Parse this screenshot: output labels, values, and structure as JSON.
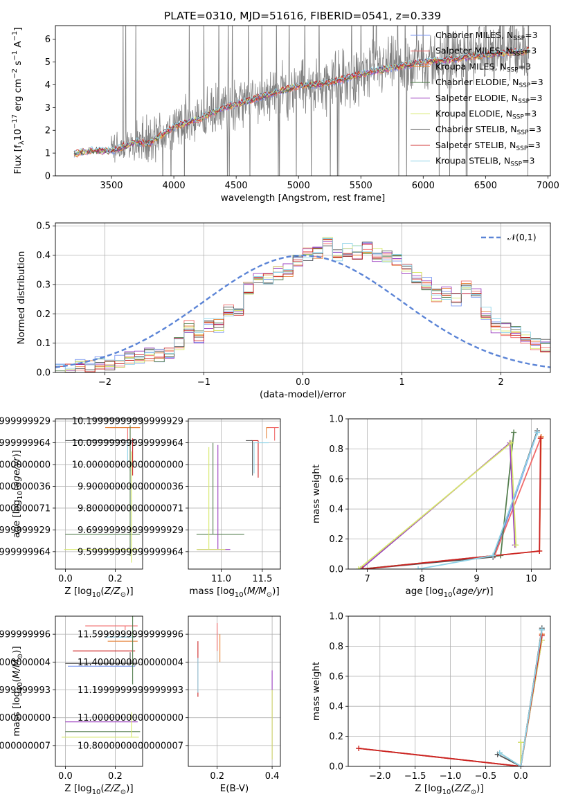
{
  "title": "PLATE=0310, MJD=51616, FIBERID=0541, z=0.339",
  "colors": [
    "#7895f0",
    "#f06a6a",
    "#e6843a",
    "#557f4f",
    "#9b3fbf",
    "#d6e86a",
    "#555555",
    "#cc2424",
    "#8fd3e8"
  ],
  "chart_data": [
    {
      "id": "spectrum",
      "type": "line",
      "title": "PLATE=0310, MJD=51616, FIBERID=0541, z=0.339",
      "xlabel": "wavelength [Angstrom, rest frame]",
      "ylabel": "Flux [f_λ 10^-17 erg cm^-2 s^-1 A^-1]",
      "xlim": [
        3050,
        7020
      ],
      "ylim": [
        0,
        6.6
      ],
      "xticks": [
        3500,
        4000,
        4500,
        5000,
        5500,
        6000,
        6500,
        7000
      ],
      "yticks": [
        0,
        1,
        2,
        3,
        4,
        5,
        6
      ],
      "data_color": "#808080",
      "legend_position": "top-right",
      "legend": [
        "Chabrier MILES, N_SSP=3",
        "Salpeter MILES, N_SSP=3",
        "Kroupa MILES, N_SSP=3",
        "Chabrier ELODIE, N_SSP=3",
        "Salpeter ELODIE, N_SSP=3",
        "Kroupa ELODIE, N_SSP=3",
        "Chabrier STELIB, N_SSP=3",
        "Salpeter STELIB, N_SSP=3",
        "Kroupa STELIB, N_SSP=3"
      ],
      "model_continuum": {
        "x": [
          3200,
          3300,
          3500,
          3700,
          3800,
          3900,
          4000,
          4200,
          4400,
          4600,
          4800,
          5000,
          5200,
          5400,
          5600,
          5800,
          6000,
          6200,
          6400,
          6600,
          6850
        ],
        "y": [
          0.95,
          1.1,
          1.1,
          1.5,
          1.4,
          1.8,
          2.15,
          2.5,
          3.0,
          3.3,
          3.65,
          3.95,
          4.05,
          4.3,
          4.6,
          4.8,
          5.0,
          5.1,
          5.25,
          5.35,
          5.5
        ]
      }
    },
    {
      "id": "residuals",
      "type": "line",
      "xlabel": "(data-model)/error",
      "ylabel": "Normed distribution",
      "xlim": [
        -2.5,
        2.5
      ],
      "ylim": [
        0,
        0.51
      ],
      "xticks": [
        -2,
        -1,
        0,
        1,
        2
      ],
      "yticks": [
        0.0,
        0.1,
        0.2,
        0.3,
        0.4,
        0.5
      ],
      "grid": true,
      "legend_position": "top-right",
      "normal_label": "𝒩(0,1)",
      "normal_color": "#5b84d6",
      "bin_width": 0.1,
      "bin_start": -2.5,
      "hist_reference": [
        0.01,
        0.01,
        0.02,
        0.02,
        0.03,
        0.03,
        0.04,
        0.05,
        0.05,
        0.06,
        0.06,
        0.07,
        0.1,
        0.16,
        0.12,
        0.16,
        0.16,
        0.21,
        0.21,
        0.29,
        0.33,
        0.32,
        0.34,
        0.35,
        0.38,
        0.4,
        0.41,
        0.44,
        0.4,
        0.42,
        0.41,
        0.43,
        0.4,
        0.4,
        0.38,
        0.36,
        0.33,
        0.3,
        0.26,
        0.27,
        0.25,
        0.29,
        0.28,
        0.2,
        0.16,
        0.15,
        0.14,
        0.12,
        0.1,
        0.09,
        0.08,
        0.07,
        0.06,
        0.07,
        0.06,
        0.05,
        0.04,
        0.04,
        0.03,
        0.03
      ]
    },
    {
      "id": "age-vs-Z",
      "type": "scatter",
      "xlabel": "Z [log10(Z/Z⊙)]",
      "ylabel": "age  [log10(age/yr)]",
      "xlim": [
        -0.04,
        0.31
      ],
      "ylim": [
        9.52,
        10.21
      ],
      "xticks": [
        0.0,
        0.2
      ],
      "yticks": [
        9.6,
        9.7,
        9.8,
        9.9,
        10.0,
        10.1,
        10.2
      ],
      "points": [
        {
          "x": 0.25,
          "y": 10.17,
          "xerr": [
            0.08,
            0.05
          ],
          "yerr": [
            0.06,
            0.0
          ],
          "series": 1
        },
        {
          "x": 0.26,
          "y": 10.17,
          "xerr": [
            0.1,
            0.04
          ],
          "yerr": [
            0.08,
            0.0
          ],
          "series": 2
        },
        {
          "x": 0.25,
          "y": 10.11,
          "xerr": [
            0.25,
            0.02
          ],
          "yerr": [
            0.1,
            0.0
          ],
          "series": 8
        },
        {
          "x": 0.26,
          "y": 10.11,
          "xerr": [
            0.26,
            0.02
          ],
          "yerr": [
            0.14,
            0.0
          ],
          "series": 6
        },
        {
          "x": 0.26,
          "y": 9.68,
          "xerr": [
            0.26,
            0.04
          ],
          "yerr": [
            0.1,
            0.5
          ],
          "series": 3
        },
        {
          "x": 0.265,
          "y": 9.61,
          "xerr": [
            0.27,
            0.03
          ],
          "yerr": [
            0.06,
            0.45
          ],
          "series": 5
        },
        {
          "x": 0.27,
          "y": 10.12,
          "xerr": [
            0.0,
            0.0
          ],
          "yerr": [
            0.17,
            0.0
          ],
          "series": 7
        }
      ]
    },
    {
      "id": "age-vs-mass",
      "type": "scatter",
      "xlabel": "mass [log10(M/M⊙)]",
      "ylabel": "",
      "xlim": [
        10.6,
        11.72
      ],
      "ylim": [
        9.52,
        10.21
      ],
      "xticks": [
        11.0,
        11.5
      ],
      "yticks": [
        9.6,
        9.7,
        9.8,
        9.9,
        10.0,
        10.1,
        10.2
      ],
      "points": [
        {
          "x": 11.65,
          "y": 10.17,
          "xerr": [
            0.1,
            0.05
          ],
          "yerr": [
            0.06,
            0.0
          ],
          "series": 1
        },
        {
          "x": 11.55,
          "y": 10.17,
          "xerr": [
            0.0,
            0.03
          ],
          "yerr": [
            0.05,
            0.0
          ],
          "series": 2
        },
        {
          "x": 11.45,
          "y": 10.11,
          "xerr": [
            0.09,
            0.0
          ],
          "yerr": [
            0.17,
            0.0
          ],
          "series": 7
        },
        {
          "x": 11.38,
          "y": 10.11,
          "xerr": [
            0.08,
            0.0
          ],
          "yerr": [
            0.16,
            0.0
          ],
          "series": 6
        },
        {
          "x": 11.4,
          "y": 10.1,
          "xerr": [
            0.0,
            0.18
          ],
          "yerr": [
            0.14,
            0.0
          ],
          "series": 8
        },
        {
          "x": 10.9,
          "y": 9.68,
          "xerr": [
            0.2,
            0.38
          ],
          "yerr": [
            0.0,
            0.42
          ],
          "series": 3
        },
        {
          "x": 10.96,
          "y": 9.61,
          "xerr": [
            0.25,
            0.15
          ],
          "yerr": [
            0.0,
            0.48
          ],
          "series": 4
        },
        {
          "x": 10.85,
          "y": 9.61,
          "xerr": [
            0.15,
            0.2
          ],
          "yerr": [
            0.0,
            0.47
          ],
          "series": 5
        }
      ]
    },
    {
      "id": "weight-vs-age",
      "type": "line",
      "xlabel": "age  [log10(age/yr)]",
      "ylabel": "mass weight",
      "xlim": [
        6.65,
        10.35
      ],
      "ylim": [
        0,
        1.0
      ],
      "xticks": [
        7,
        8,
        9,
        10
      ],
      "yticks": [
        0.0,
        0.2,
        0.4,
        0.6,
        0.8,
        1.0
      ],
      "grid": true,
      "series": [
        {
          "series": 0,
          "x": [
            6.9,
            9.33,
            10.11
          ],
          "y": [
            0.0,
            0.09,
            0.91
          ]
        },
        {
          "series": 1,
          "x": [
            6.9,
            9.33,
            10.18
          ],
          "y": [
            0.0,
            0.09,
            0.88
          ]
        },
        {
          "series": 2,
          "x": [
            6.9,
            10.15,
            10.18
          ],
          "y": [
            0.0,
            0.12,
            0.88
          ]
        },
        {
          "series": 3,
          "x": [
            6.88,
            9.44,
            9.68
          ],
          "y": [
            0.0,
            0.09,
            0.91
          ]
        },
        {
          "series": 4,
          "x": [
            6.88,
            9.61,
            9.7
          ],
          "y": [
            0.0,
            0.84,
            0.16
          ]
        },
        {
          "series": 5,
          "x": [
            6.84,
            9.63,
            9.72
          ],
          "y": [
            0.0,
            0.84,
            0.16
          ]
        },
        {
          "series": 6,
          "x": [
            6.92,
            9.3,
            10.11
          ],
          "y": [
            0.0,
            0.08,
            0.92
          ]
        },
        {
          "series": 7,
          "x": [
            6.92,
            10.15,
            10.17
          ],
          "y": [
            0.0,
            0.12,
            0.87
          ]
        },
        {
          "series": 8,
          "x": [
            7.93,
            9.3,
            10.11
          ],
          "y": [
            0.0,
            0.09,
            0.91
          ]
        }
      ]
    },
    {
      "id": "mass-vs-Z",
      "type": "scatter",
      "xlabel": "Z [log10(Z/Z⊙)]",
      "ylabel": "mass [log10(M/M⊙)]",
      "xlim": [
        -0.04,
        0.31
      ],
      "ylim": [
        10.65,
        11.73
      ],
      "xticks": [
        0.0,
        0.2
      ],
      "yticks": [
        10.8,
        11.0,
        11.2,
        11.4,
        11.6
      ],
      "points": [
        {
          "x": 0.24,
          "y": 11.66,
          "xerr": [
            0.16,
            0.05
          ],
          "yerr": [
            0.03,
            0.0
          ],
          "series": 1
        },
        {
          "x": 0.24,
          "y": 11.58,
          "xerr": [
            0.08,
            0.04
          ],
          "yerr": [
            0.0,
            0.0
          ],
          "series": 8
        },
        {
          "x": 0.25,
          "y": 11.55,
          "xerr": [
            0.08,
            0.04
          ],
          "yerr": [
            0.0,
            0.0
          ],
          "series": 2
        },
        {
          "x": 0.25,
          "y": 11.48,
          "xerr": [
            0.22,
            0.03
          ],
          "yerr": [
            0.0,
            0.0
          ],
          "series": 7
        },
        {
          "x": 0.26,
          "y": 11.39,
          "xerr": [
            0.26,
            0.03
          ],
          "yerr": [
            0.0,
            0.08
          ],
          "series": 6
        },
        {
          "x": 0.26,
          "y": 11.37,
          "xerr": [
            0.25,
            0.02
          ],
          "yerr": [
            0.0,
            0.0
          ],
          "series": 0
        },
        {
          "x": 0.26,
          "y": 10.97,
          "xerr": [
            0.26,
            0.03
          ],
          "yerr": [
            0.0,
            0.0
          ],
          "series": 4
        },
        {
          "x": 0.26,
          "y": 10.9,
          "xerr": [
            0.26,
            0.04
          ],
          "yerr": [
            0.0,
            0.0
          ],
          "series": 3
        },
        {
          "x": 0.265,
          "y": 10.86,
          "xerr": [
            0.28,
            0.03
          ],
          "yerr": [
            0.0,
            0.18
          ],
          "series": 5
        },
        {
          "x": 0.27,
          "y": 11.3,
          "xerr": [
            0.0,
            0.0
          ],
          "yerr": [
            0.06,
            0.62
          ],
          "series": 3
        }
      ]
    },
    {
      "id": "mass-vs-ebv",
      "type": "scatter",
      "xlabel": "E(B-V)",
      "ylabel": "",
      "xlim": [
        0.095,
        0.43
      ],
      "ylim": [
        10.65,
        11.73
      ],
      "xticks": [
        0.2,
        0.4
      ],
      "yticks": [
        10.8,
        11.0,
        11.2,
        11.4,
        11.6
      ],
      "points": [
        {
          "x": 0.13,
          "y": 11.3,
          "xerr": [
            0.0,
            0.0
          ],
          "yerr": [
            0.15,
            0.25
          ],
          "series": 7
        },
        {
          "x": 0.13,
          "y": 11.3,
          "xerr": [
            0.0,
            0.0
          ],
          "yerr": [
            0.12,
            0.13
          ],
          "series": 8
        },
        {
          "x": 0.2,
          "y": 11.58,
          "xerr": [
            0.0,
            0.0
          ],
          "yerr": [
            0.1,
            0.1
          ],
          "series": 1
        },
        {
          "x": 0.21,
          "y": 11.5,
          "xerr": [
            0.0,
            0.0
          ],
          "yerr": [
            0.1,
            0.1
          ],
          "series": 2
        },
        {
          "x": 0.4,
          "y": 11.2,
          "xerr": [
            0.0,
            0.0
          ],
          "yerr": [
            0.5,
            0.14
          ],
          "series": 4
        },
        {
          "x": 0.4,
          "y": 11.0,
          "xerr": [
            0.0,
            0.0
          ],
          "yerr": [
            0.3,
            0.2
          ],
          "series": 5
        }
      ]
    },
    {
      "id": "weight-vs-Z",
      "type": "line",
      "xlabel": "Z [log10(Z/Z⊙)]",
      "ylabel": "mass weight",
      "xlim": [
        -2.45,
        0.42
      ],
      "ylim": [
        0,
        1.0
      ],
      "xticks": [
        -2.0,
        -1.5,
        -1.0,
        -0.5,
        0.0
      ],
      "yticks": [
        0.0,
        0.2,
        0.4,
        0.6,
        0.8,
        1.0
      ],
      "grid": true,
      "series": [
        {
          "series": 0,
          "x": [
            -2.3,
            0.0,
            0.3
          ],
          "y": [
            0.12,
            0.0,
            0.91
          ]
        },
        {
          "series": 1,
          "x": [
            -2.3,
            0.0,
            0.3
          ],
          "y": [
            0.12,
            0.0,
            0.88
          ]
        },
        {
          "series": 2,
          "x": [
            -2.3,
            0.0,
            0.3
          ],
          "y": [
            0.12,
            0.0,
            0.88
          ]
        },
        {
          "series": 3,
          "x": [
            -0.3,
            0.0,
            0.3
          ],
          "y": [
            0.09,
            0.0,
            0.91
          ]
        },
        {
          "series": 4,
          "x": [
            0.0,
            0.0,
            0.3
          ],
          "y": [
            0.16,
            0.0,
            0.84
          ]
        },
        {
          "series": 5,
          "x": [
            0.0,
            0.0,
            0.3
          ],
          "y": [
            0.16,
            0.0,
            0.84
          ]
        },
        {
          "series": 6,
          "x": [
            -0.33,
            0.0,
            0.3
          ],
          "y": [
            0.08,
            0.0,
            0.92
          ]
        },
        {
          "series": 7,
          "x": [
            -2.3,
            0.0,
            0.3
          ],
          "y": [
            0.12,
            0.0,
            0.87
          ]
        },
        {
          "series": 8,
          "x": [
            -0.3,
            0.0,
            0.3
          ],
          "y": [
            0.09,
            0.0,
            0.91
          ]
        }
      ]
    }
  ]
}
